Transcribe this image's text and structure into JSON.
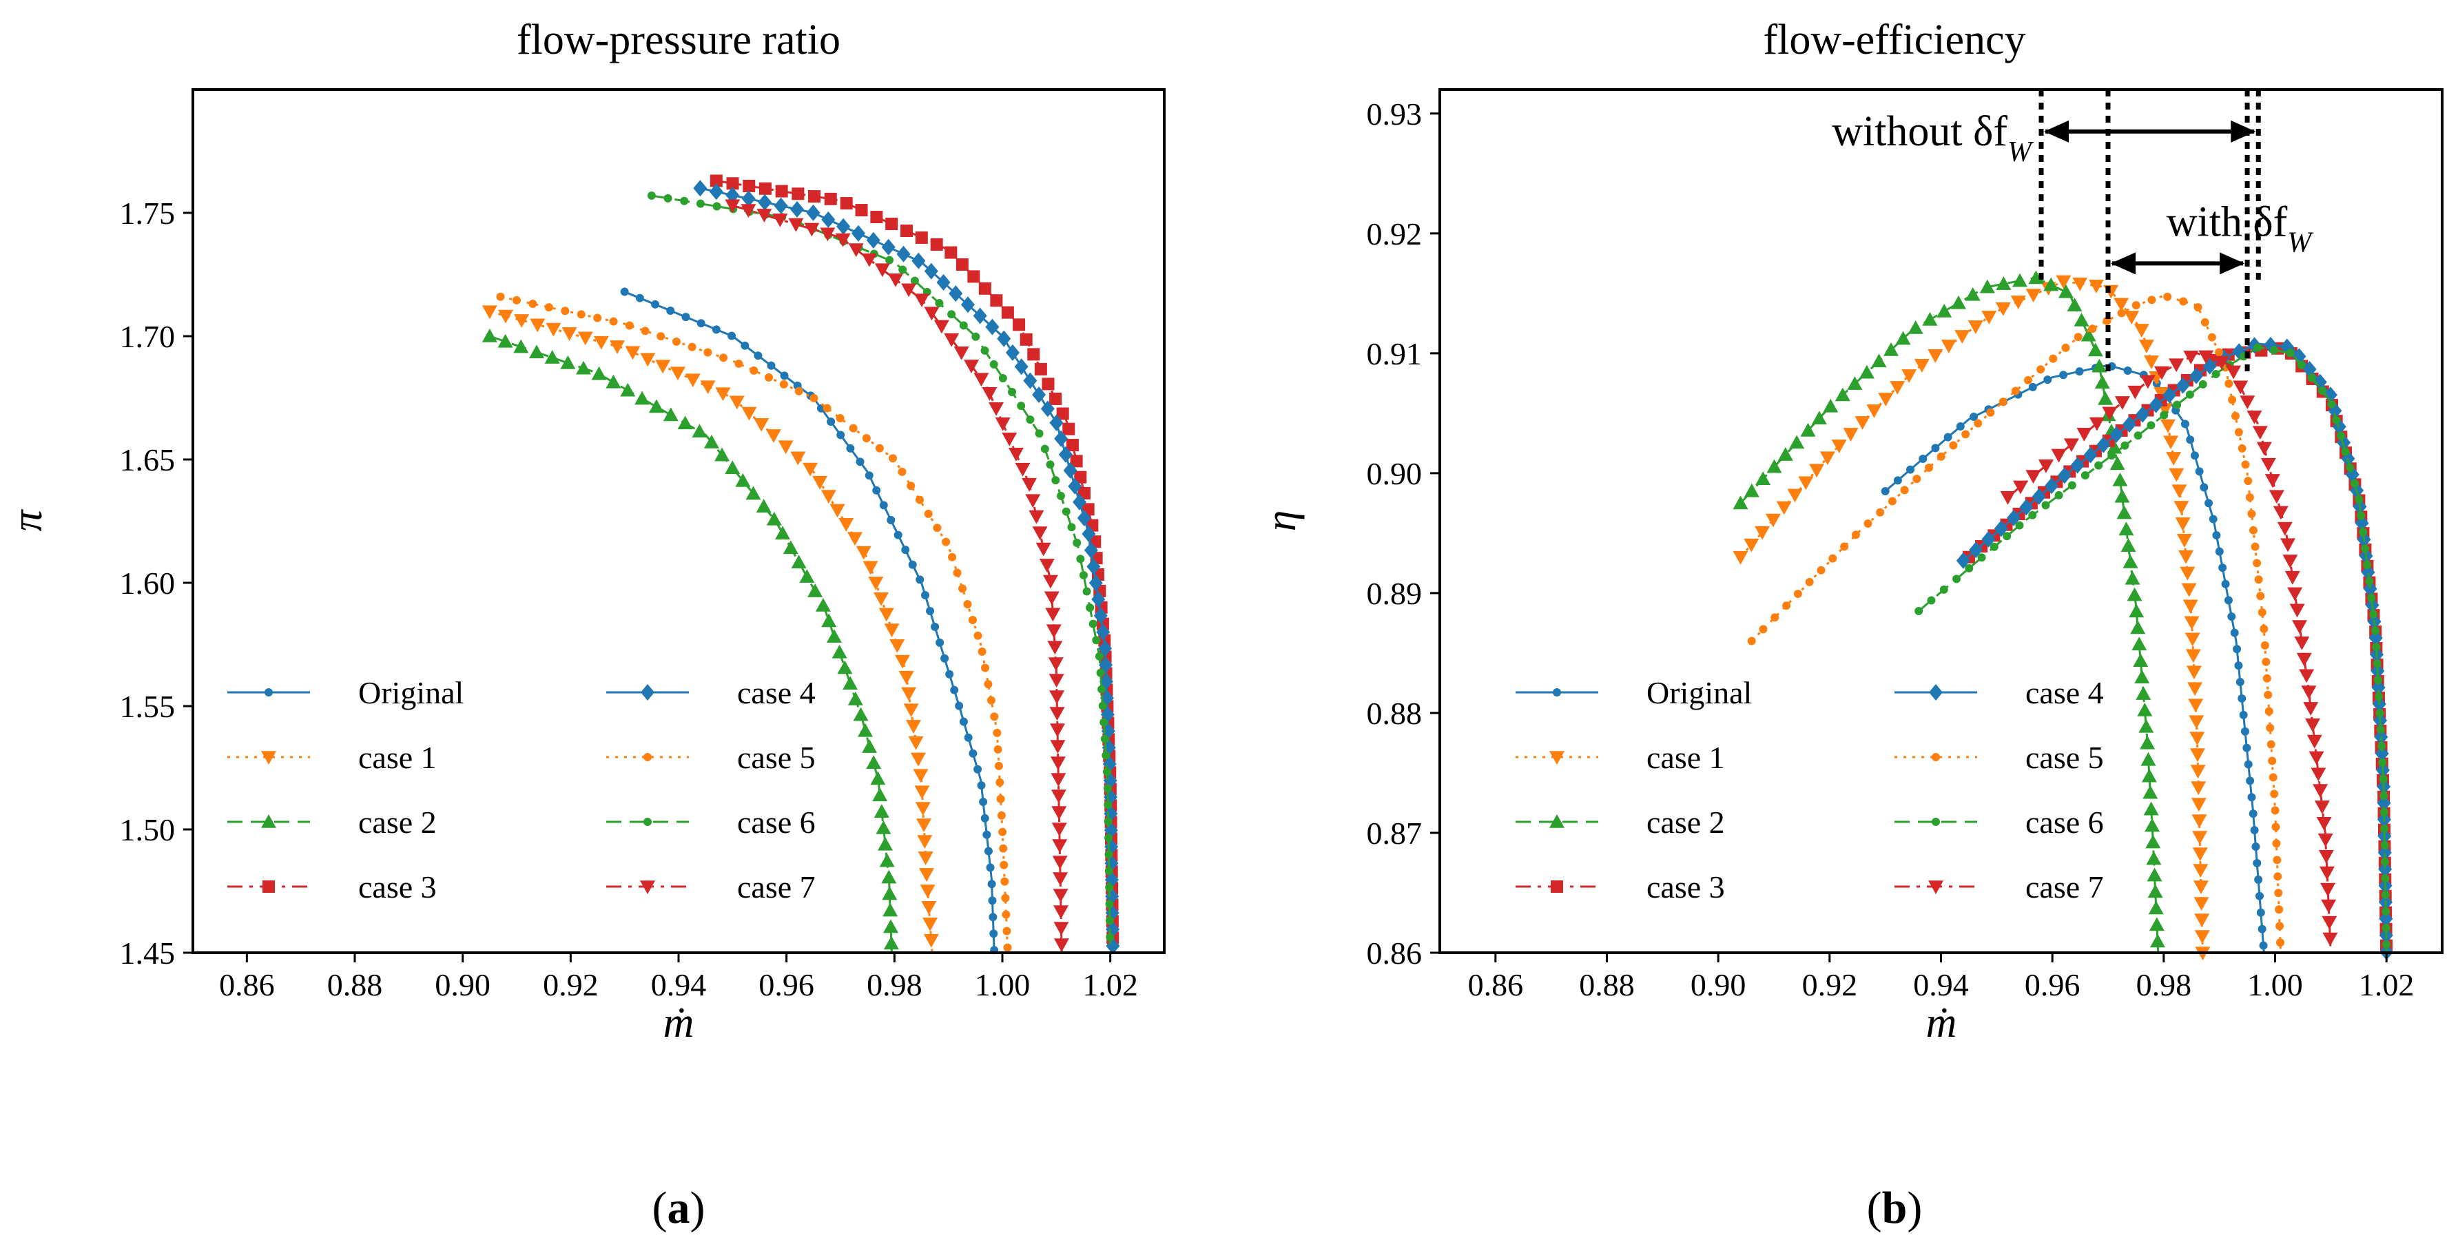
{
  "colors": {
    "Original": "#1f77b4",
    "case 1": "#ff7f0e",
    "case 2": "#2ca02c",
    "case 3": "#d62728",
    "case 4": "#1f77b4",
    "case 5": "#ff7f0e",
    "case 6": "#2ca02c",
    "case 7": "#d62728"
  },
  "chart_data": [
    {
      "type": "line",
      "title": "flow-pressure ratio",
      "xlabel": "ṁ",
      "ylabel": "π",
      "panel_label": "a",
      "xlim": [
        0.85,
        1.03
      ],
      "ylim": [
        1.45,
        1.8
      ],
      "xticks": [
        "0.86",
        "0.88",
        "0.90",
        "0.92",
        "0.94",
        "0.96",
        "0.98",
        "1.00",
        "1.02"
      ],
      "yticks": [
        "1.45",
        "1.50",
        "1.55",
        "1.60",
        "1.65",
        "1.70",
        "1.75"
      ],
      "legend": [
        "Original",
        "case 1",
        "case 2",
        "case 3",
        "case 4",
        "case 5",
        "case 6",
        "case 7"
      ],
      "series": [
        {
          "name": "Original",
          "marker": "circle",
          "dash": "solid",
          "x": [
            0.93,
            0.95,
            0.965,
            0.975,
            0.985,
            0.992,
            0.996,
            0.998,
            0.9985
          ],
          "y": [
            1.718,
            1.7,
            1.675,
            1.645,
            1.6,
            1.55,
            1.52,
            1.48,
            1.45
          ]
        },
        {
          "name": "case 1",
          "marker": "triangle-down",
          "dash": "dotted",
          "x": [
            0.905,
            0.93,
            0.95,
            0.965,
            0.975,
            0.982,
            0.985,
            0.986,
            0.987
          ],
          "y": [
            1.71,
            1.695,
            1.675,
            1.645,
            1.61,
            1.565,
            1.52,
            1.48,
            1.45
          ]
        },
        {
          "name": "case 2",
          "marker": "triangle-up",
          "dash": "dashed",
          "x": [
            0.905,
            0.925,
            0.945,
            0.958,
            0.967,
            0.974,
            0.977,
            0.979,
            0.9795
          ],
          "y": [
            1.7,
            1.685,
            1.66,
            1.625,
            1.59,
            1.545,
            1.52,
            1.48,
            1.45
          ]
        },
        {
          "name": "case 3",
          "marker": "square",
          "dash": "dashdot",
          "x": [
            0.947,
            0.97,
            0.99,
            1.003,
            1.012,
            1.017,
            1.019,
            1.02,
            1.0205
          ],
          "y": [
            1.763,
            1.755,
            1.735,
            1.705,
            1.665,
            1.62,
            1.575,
            1.52,
            1.45
          ]
        },
        {
          "name": "case 4",
          "marker": "diamond",
          "dash": "solid",
          "x": [
            0.944,
            0.965,
            0.985,
            1.0,
            1.01,
            1.016,
            1.019,
            1.02,
            1.0205
          ],
          "y": [
            1.76,
            1.75,
            1.73,
            1.7,
            1.665,
            1.62,
            1.575,
            1.52,
            1.45
          ]
        },
        {
          "name": "case 5",
          "marker": "circle",
          "dash": "dotted",
          "x": [
            0.907,
            0.93,
            0.95,
            0.965,
            0.98,
            0.99,
            0.996,
            0.999,
            1.0,
            1.001
          ],
          "y": [
            1.716,
            1.705,
            1.69,
            1.675,
            1.65,
            1.615,
            1.575,
            1.54,
            1.5,
            1.45
          ]
        },
        {
          "name": "case 6",
          "marker": "circle",
          "dash": "dashed",
          "x": [
            0.935,
            0.96,
            0.98,
            0.995,
            1.007,
            1.014,
            1.018,
            1.0195,
            1.02
          ],
          "y": [
            1.757,
            1.748,
            1.73,
            1.7,
            1.66,
            1.615,
            1.57,
            1.52,
            1.45
          ]
        },
        {
          "name": "case 7",
          "marker": "triangle-down",
          "dash": "dashdot",
          "x": [
            0.95,
            0.97,
            0.985,
            0.997,
            1.005,
            1.009,
            1.01,
            1.011
          ],
          "y": [
            1.753,
            1.74,
            1.715,
            1.68,
            1.64,
            1.6,
            1.565,
            1.45
          ]
        }
      ]
    },
    {
      "type": "line",
      "title": "flow-efficiency",
      "xlabel": "ṁ",
      "ylabel": "η",
      "panel_label": "b",
      "xlim": [
        0.85,
        1.03
      ],
      "ylim": [
        0.86,
        0.932
      ],
      "xticks": [
        "0.86",
        "0.88",
        "0.90",
        "0.92",
        "0.94",
        "0.96",
        "0.98",
        "1.00",
        "1.02"
      ],
      "yticks": [
        "0.86",
        "0.87",
        "0.88",
        "0.89",
        "0.90",
        "0.91",
        "0.92",
        "0.93"
      ],
      "legend": [
        "Original",
        "case 1",
        "case 2",
        "case 3",
        "case 4",
        "case 5",
        "case 6",
        "case 7"
      ],
      "annotations": [
        {
          "text": "without δf",
          "sub": "W",
          "from": 0.958,
          "to": 0.997,
          "y": 0.9285
        },
        {
          "text": "with δf",
          "sub": "W",
          "from": 0.97,
          "to": 0.995,
          "y": 0.9175
        }
      ],
      "series": [
        {
          "name": "Original",
          "marker": "circle",
          "dash": "solid",
          "x": [
            0.93,
            0.945,
            0.96,
            0.97,
            0.978,
            0.984,
            0.989,
            0.993,
            0.996,
            0.998
          ],
          "y": [
            0.8985,
            0.9045,
            0.908,
            0.909,
            0.908,
            0.904,
            0.896,
            0.886,
            0.872,
            0.86
          ]
        },
        {
          "name": "case 1",
          "marker": "triangle-down",
          "dash": "dotted",
          "x": [
            0.904,
            0.92,
            0.935,
            0.95,
            0.962,
            0.97,
            0.976,
            0.98,
            0.983,
            0.985,
            0.986,
            0.987
          ],
          "y": [
            0.893,
            0.9015,
            0.9085,
            0.9135,
            0.916,
            0.9155,
            0.912,
            0.906,
            0.898,
            0.888,
            0.878,
            0.86
          ]
        },
        {
          "name": "case 2",
          "marker": "triangle-up",
          "dash": "dashed",
          "x": [
            0.904,
            0.92,
            0.935,
            0.948,
            0.957,
            0.963,
            0.968,
            0.972,
            0.975,
            0.977,
            0.978,
            0.979
          ],
          "y": [
            0.8975,
            0.9055,
            0.912,
            0.9155,
            0.9163,
            0.915,
            0.91,
            0.9,
            0.889,
            0.878,
            0.87,
            0.86
          ]
        },
        {
          "name": "case 3",
          "marker": "square",
          "dash": "dashdot",
          "x": [
            0.945,
            0.96,
            0.975,
            0.99,
            1.002,
            1.01,
            1.015,
            1.018,
            1.0195,
            1.02
          ],
          "y": [
            0.893,
            0.899,
            0.9045,
            0.9098,
            0.9105,
            0.906,
            0.898,
            0.887,
            0.873,
            0.86
          ]
        },
        {
          "name": "case 4",
          "marker": "diamond",
          "dash": "solid",
          "x": [
            0.944,
            0.96,
            0.975,
            0.99,
            0.997,
            1.003,
            1.01,
            1.015,
            1.018,
            1.0195,
            1.02
          ],
          "y": [
            0.8927,
            0.899,
            0.9045,
            0.9095,
            0.9108,
            0.9105,
            0.9065,
            0.898,
            0.887,
            0.874,
            0.86
          ]
        },
        {
          "name": "case 5",
          "marker": "circle",
          "dash": "dotted",
          "x": [
            0.906,
            0.925,
            0.945,
            0.965,
            0.975,
            0.98,
            0.986,
            0.991,
            0.995,
            0.998,
            1.0,
            1.001
          ],
          "y": [
            0.886,
            0.895,
            0.9035,
            0.9115,
            0.914,
            0.9148,
            0.914,
            0.909,
            0.9,
            0.887,
            0.872,
            0.86
          ]
        },
        {
          "name": "case 6",
          "marker": "circle",
          "dash": "dashed",
          "x": [
            0.936,
            0.955,
            0.975,
            0.99,
            0.997,
            1.003,
            1.01,
            1.015,
            1.018,
            1.0195,
            1.02
          ],
          "y": [
            0.8885,
            0.896,
            0.903,
            0.9085,
            0.9105,
            0.91,
            0.906,
            0.898,
            0.887,
            0.874,
            0.86
          ]
        },
        {
          "name": "case 7",
          "marker": "triangle-down",
          "dash": "dashdot",
          "x": [
            0.952,
            0.965,
            0.978,
            0.986,
            0.992,
            0.997,
            1.002,
            1.006,
            1.009,
            1.01
          ],
          "y": [
            0.898,
            0.903,
            0.908,
            0.91,
            0.909,
            0.904,
            0.895,
            0.882,
            0.87,
            0.86
          ]
        }
      ]
    }
  ]
}
